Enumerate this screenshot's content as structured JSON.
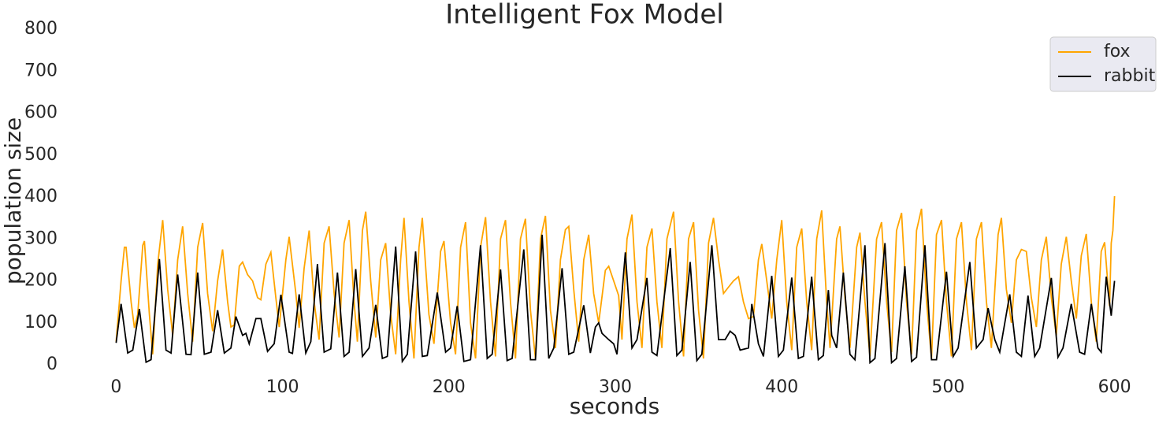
{
  "chart_data": {
    "type": "line",
    "title": "Intelligent Fox Model",
    "xlabel": "seconds",
    "ylabel": "population size",
    "xlim": [
      -30,
      630
    ],
    "ylim": [
      -30,
      800
    ],
    "xticks": [
      0,
      100,
      200,
      300,
      400,
      500,
      600
    ],
    "yticks": [
      0,
      100,
      200,
      300,
      400,
      500,
      600,
      700,
      800
    ],
    "legend": "upper right",
    "series": [
      {
        "name": "fox",
        "color": "#ffa500",
        "x": [
          0,
          3,
          5,
          6,
          9,
          11,
          13,
          16,
          17,
          20,
          22,
          25,
          28,
          31,
          34,
          37,
          40,
          43,
          46,
          49,
          52,
          55,
          58,
          61,
          64,
          67,
          69,
          71,
          74,
          76,
          79,
          82,
          85,
          87,
          90,
          93,
          96,
          98,
          102,
          104,
          108,
          110,
          113,
          116,
          119,
          122,
          125,
          128,
          131,
          134,
          137,
          140,
          143,
          145,
          148,
          150,
          153,
          156,
          159,
          162,
          165,
          168,
          171,
          173,
          176,
          179,
          182,
          184,
          188,
          191,
          195,
          197,
          201,
          204,
          207,
          210,
          213,
          216,
          219,
          222,
          225,
          228,
          231,
          234,
          237,
          240,
          243,
          246,
          249,
          252,
          255,
          258,
          261,
          264,
          267,
          270,
          272,
          275,
          278,
          281,
          284,
          287,
          290,
          294,
          296,
          299,
          302,
          304,
          307,
          310,
          313,
          316,
          319,
          322,
          325,
          328,
          331,
          335,
          338,
          341,
          344,
          347,
          350,
          353,
          356,
          359,
          362,
          365,
          368,
          371,
          374,
          377,
          380,
          383,
          386,
          388,
          391,
          394,
          397,
          400,
          403,
          406,
          409,
          412,
          415,
          418,
          421,
          424,
          427,
          429,
          433,
          435,
          438,
          441,
          445,
          447,
          450,
          453,
          457,
          460,
          463,
          466,
          469,
          472,
          475,
          478,
          481,
          484,
          487,
          490,
          493,
          496,
          499,
          502,
          505,
          508,
          511,
          514,
          517,
          520,
          523,
          526,
          530,
          532,
          535,
          538,
          541,
          544,
          547,
          550,
          553,
          556,
          559,
          562,
          565,
          568,
          571,
          574,
          577,
          580,
          583,
          586,
          589,
          592,
          594,
          597,
          598,
          599,
          600
        ],
        "values": [
          55,
          200,
          280,
          280,
          150,
          88,
          120,
          285,
          295,
          120,
          25,
          240,
          345,
          180,
          70,
          250,
          330,
          170,
          55,
          280,
          338,
          170,
          80,
          200,
          275,
          150,
          90,
          95,
          235,
          245,
          215,
          200,
          160,
          155,
          240,
          268,
          160,
          90,
          250,
          305,
          170,
          88,
          230,
          320,
          150,
          60,
          290,
          330,
          170,
          65,
          290,
          345,
          150,
          55,
          320,
          365,
          200,
          65,
          250,
          290,
          120,
          25,
          250,
          350,
          150,
          15,
          280,
          350,
          120,
          50,
          270,
          295,
          100,
          25,
          280,
          340,
          100,
          15,
          280,
          352,
          150,
          20,
          300,
          345,
          150,
          15,
          300,
          348,
          130,
          15,
          300,
          355,
          130,
          40,
          250,
          322,
          330,
          180,
          55,
          250,
          310,
          170,
          100,
          225,
          235,
          200,
          165,
          60,
          300,
          358,
          150,
          40,
          280,
          325,
          150,
          40,
          300,
          365,
          150,
          20,
          300,
          340,
          130,
          15,
          290,
          350,
          250,
          170,
          185,
          200,
          210,
          150,
          110,
          115,
          250,
          288,
          200,
          110,
          250,
          345,
          150,
          35,
          280,
          325,
          150,
          35,
          300,
          368,
          150,
          40,
          300,
          330,
          160,
          40,
          280,
          315,
          150,
          20,
          300,
          340,
          150,
          30,
          320,
          362,
          150,
          25,
          320,
          372,
          150,
          15,
          310,
          345,
          150,
          20,
          300,
          340,
          150,
          35,
          300,
          340,
          150,
          40,
          310,
          350,
          180,
          100,
          250,
          275,
          270,
          160,
          90,
          250,
          305,
          160,
          70,
          240,
          305,
          200,
          110,
          260,
          312,
          150,
          55,
          270,
          292,
          140,
          290,
          320,
          402
        ]
      },
      {
        "name": "rabbit",
        "color": "#000000",
        "x": [
          0,
          3,
          7,
          10,
          14,
          18,
          21,
          26,
          30,
          33,
          37,
          42,
          45,
          49,
          53,
          57,
          61,
          65,
          69,
          72,
          76,
          78,
          80,
          84,
          87,
          91,
          95,
          99,
          104,
          106,
          110,
          114,
          117,
          121,
          125,
          129,
          133,
          137,
          140,
          144,
          148,
          152,
          156,
          160,
          163,
          168,
          172,
          175,
          180,
          184,
          187,
          193,
          198,
          201,
          205,
          209,
          213,
          219,
          223,
          226,
          231,
          235,
          238,
          245,
          249,
          252,
          256,
          260,
          263,
          268,
          272,
          275,
          281,
          285,
          288,
          290,
          292,
          296,
          299,
          301,
          306,
          310,
          313,
          319,
          322,
          325,
          333,
          337,
          340,
          345,
          349,
          352,
          358,
          362,
          366,
          369,
          372,
          375,
          380,
          382,
          386,
          389,
          394,
          398,
          401,
          406,
          410,
          413,
          418,
          422,
          425,
          428,
          430,
          433,
          437,
          441,
          444,
          450,
          453,
          456,
          462,
          466,
          469,
          474,
          478,
          481,
          486,
          490,
          493,
          499,
          503,
          506,
          513,
          517,
          521,
          524,
          528,
          531,
          537,
          541,
          544,
          548,
          552,
          555,
          562,
          566,
          569,
          574,
          579,
          582,
          586,
          590,
          592,
          595,
          598,
          600
        ],
        "values": [
          52,
          145,
          28,
          35,
          133,
          6,
          12,
          252,
          35,
          28,
          215,
          25,
          24,
          220,
          25,
          30,
          130,
          28,
          40,
          115,
          70,
          75,
          50,
          110,
          110,
          32,
          50,
          167,
          30,
          27,
          168,
          28,
          55,
          240,
          30,
          38,
          220,
          20,
          30,
          228,
          20,
          40,
          143,
          15,
          20,
          282,
          8,
          25,
          270,
          20,
          22,
          172,
          30,
          40,
          140,
          8,
          12,
          285,
          15,
          25,
          227,
          10,
          15,
          275,
          12,
          12,
          310,
          15,
          40,
          230,
          25,
          30,
          142,
          28,
          90,
          100,
          75,
          60,
          50,
          25,
          268,
          40,
          60,
          207,
          30,
          22,
          278,
          22,
          35,
          245,
          10,
          25,
          285,
          60,
          60,
          80,
          70,
          35,
          40,
          145,
          50,
          20,
          212,
          20,
          35,
          208,
          15,
          20,
          210,
          12,
          22,
          178,
          70,
          40,
          220,
          25,
          12,
          285,
          5,
          15,
          290,
          5,
          15,
          235,
          8,
          18,
          285,
          12,
          12,
          222,
          20,
          40,
          245,
          40,
          60,
          135,
          60,
          30,
          168,
          30,
          20,
          165,
          20,
          40,
          207,
          18,
          40,
          145,
          30,
          25,
          145,
          40,
          30,
          210,
          117,
          200
        ]
      }
    ]
  }
}
